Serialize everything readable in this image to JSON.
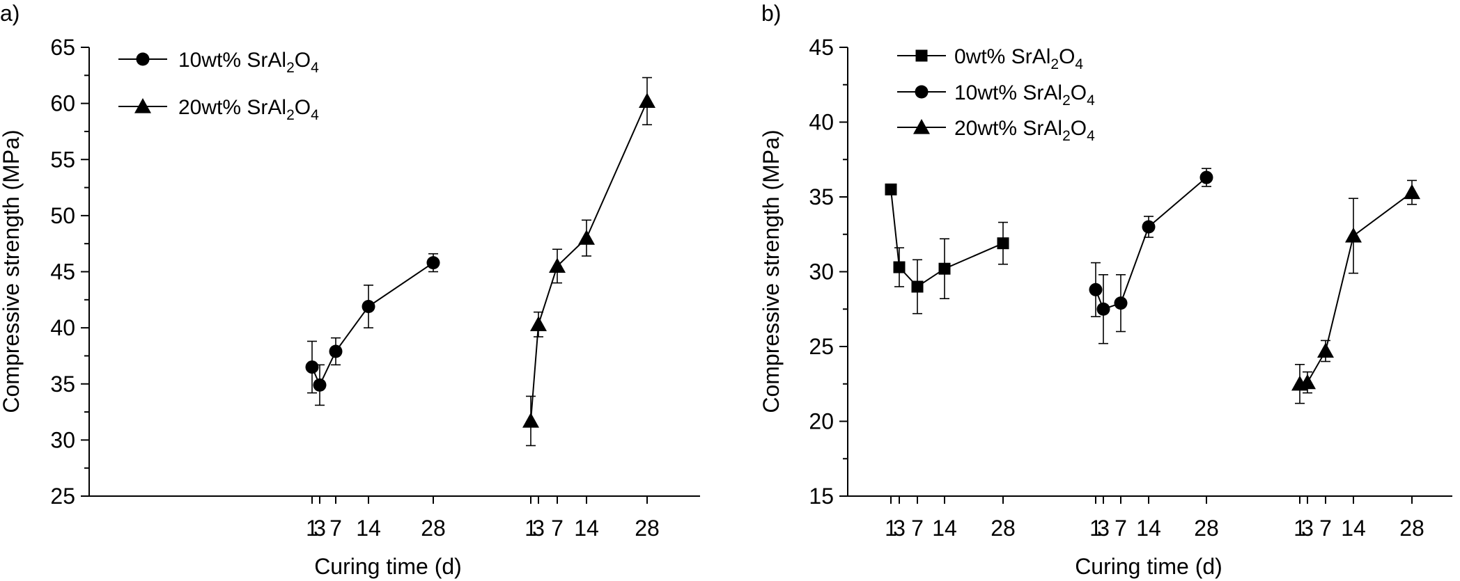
{
  "chart_data": [
    {
      "panel_label": "a)",
      "type": "line",
      "xlabel": "Curing time (d)",
      "ylabel": "Compressive strength (MPa)",
      "ylim": [
        25,
        65
      ],
      "yticks": [
        25,
        30,
        35,
        40,
        45,
        50,
        55,
        60,
        65
      ],
      "x_tick_groups": [
        [
          "1",
          "3",
          "7",
          "14",
          "28"
        ],
        [
          "1",
          "3",
          "7",
          "14",
          "28"
        ]
      ],
      "legend_position": "top-left",
      "series": [
        {
          "name": "10wt% SrAl2O4",
          "legend_parts": [
            "10wt% SrAl",
            "2",
            "O",
            "4"
          ],
          "marker": "circle",
          "group": 0,
          "x": [
            1,
            3,
            7,
            14,
            28
          ],
          "y": [
            36.5,
            34.9,
            37.9,
            41.9,
            45.8
          ],
          "err": [
            2.3,
            1.8,
            1.2,
            1.9,
            0.8
          ]
        },
        {
          "name": "20wt% SrAl2O4",
          "legend_parts": [
            "20wt% SrAl",
            "2",
            "O",
            "4"
          ],
          "marker": "triangle",
          "group": 1,
          "x": [
            1,
            3,
            7,
            14,
            28
          ],
          "y": [
            31.7,
            40.3,
            45.5,
            48.0,
            60.2
          ],
          "err": [
            2.2,
            1.1,
            1.5,
            1.6,
            2.1
          ]
        }
      ]
    },
    {
      "panel_label": "b)",
      "type": "line",
      "xlabel": "Curing time (d)",
      "ylabel": "Compressive strength (MPa)",
      "ylim": [
        15,
        45
      ],
      "yticks": [
        15,
        20,
        25,
        30,
        35,
        40,
        45
      ],
      "x_tick_groups": [
        [
          "1",
          "3",
          "7",
          "14",
          "28"
        ],
        [
          "1",
          "3",
          "7",
          "14",
          "28"
        ],
        [
          "1",
          "3",
          "7",
          "14",
          "28"
        ]
      ],
      "legend_position": "top-left",
      "series": [
        {
          "name": "0wt% SrAl2O4",
          "legend_parts": [
            "0wt% SrAl",
            "2",
            "O",
            "4"
          ],
          "marker": "square",
          "group": 0,
          "x": [
            1,
            3,
            7,
            14,
            28
          ],
          "y": [
            35.5,
            30.3,
            29.0,
            30.2,
            31.9
          ],
          "err": [
            0,
            1.3,
            1.8,
            2.0,
            1.4
          ]
        },
        {
          "name": "10wt% SrAl2O4",
          "legend_parts": [
            "10wt% SrAl",
            "2",
            "O",
            "4"
          ],
          "marker": "circle",
          "group": 1,
          "x": [
            1,
            3,
            7,
            14,
            28
          ],
          "y": [
            28.8,
            27.5,
            27.9,
            33.0,
            36.3
          ],
          "err": [
            1.8,
            2.3,
            1.9,
            0.7,
            0.6
          ]
        },
        {
          "name": "20wt% SrAl2O4",
          "legend_parts": [
            "20wt% SrAl",
            "2",
            "O",
            "4"
          ],
          "marker": "triangle",
          "group": 2,
          "x": [
            1,
            3,
            7,
            14,
            28
          ],
          "y": [
            22.5,
            22.6,
            24.7,
            32.4,
            35.3
          ],
          "err": [
            1.3,
            0.7,
            0.7,
            2.5,
            0.8
          ]
        }
      ]
    }
  ]
}
